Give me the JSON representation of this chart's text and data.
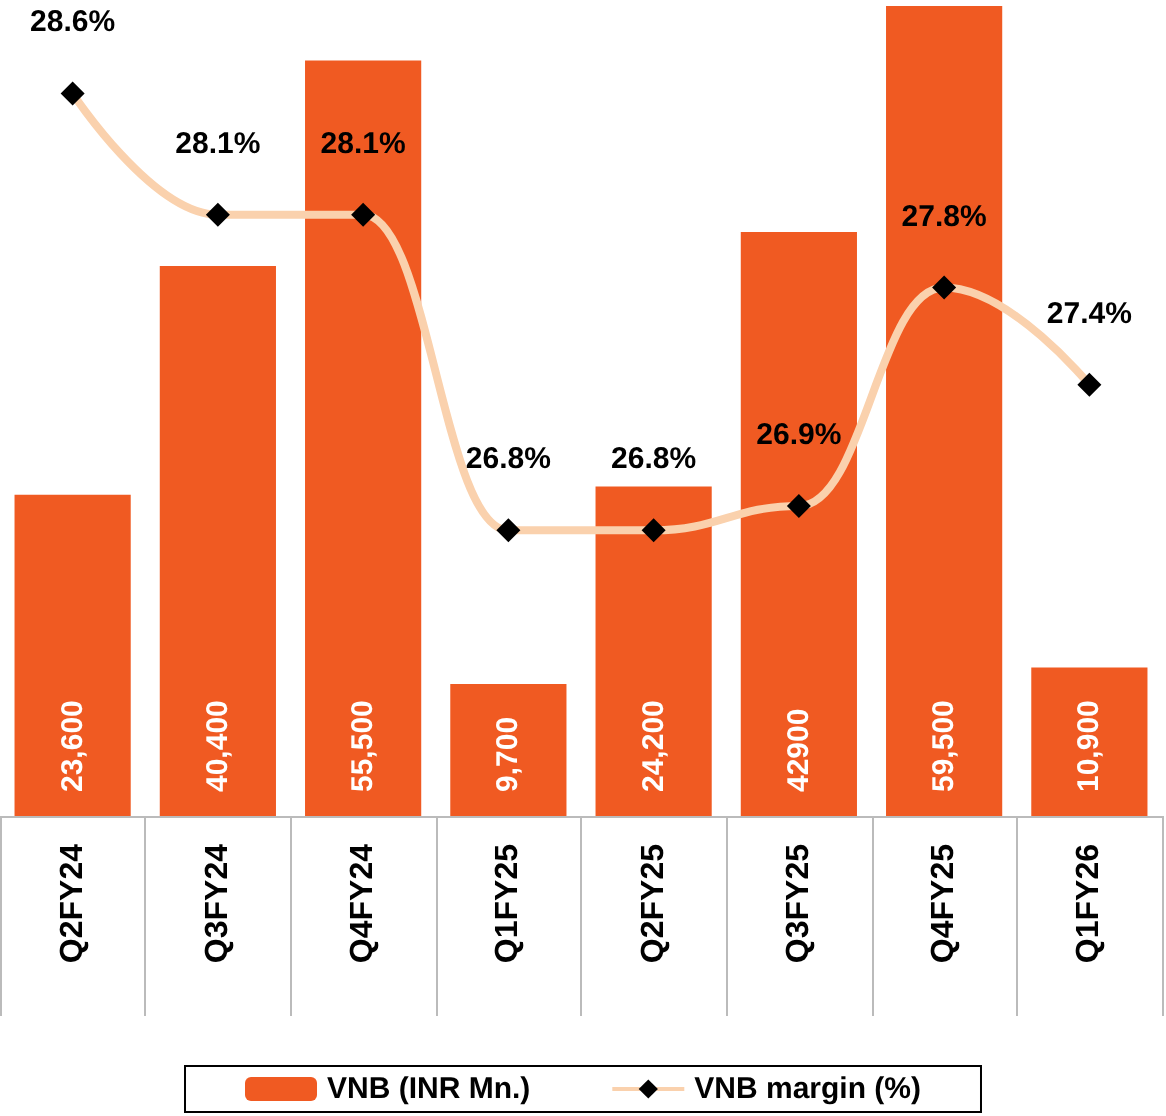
{
  "chart_data": {
    "type": "bar",
    "categories": [
      "Q2FY24",
      "Q3FY24",
      "Q4FY24",
      "Q1FY25",
      "Q2FY25",
      "Q3FY25",
      "Q4FY25",
      "Q1FY26"
    ],
    "series": [
      {
        "name": "VNB (INR Mn.)",
        "color": "#f05a22",
        "values": [
          23600,
          40400,
          55500,
          9700,
          24200,
          42900,
          59500,
          10900
        ],
        "value_labels": [
          "23,600",
          "40,400",
          "55,500",
          "9,700",
          "24,200",
          "42900",
          "59,500",
          "10,900"
        ]
      },
      {
        "name": "VNB margin (%)",
        "type": "line",
        "axis": "y2",
        "color": "#fad1ad",
        "marker": "diamond",
        "values": [
          28.6,
          28.1,
          28.1,
          26.8,
          26.8,
          26.9,
          27.8,
          27.4
        ],
        "value_labels": [
          "28.6%",
          "28.1%",
          "28.1%",
          "26.8%",
          "26.8%",
          "26.9%",
          "27.8%",
          "27.4%"
        ]
      }
    ],
    "legend": "bottom",
    "grid": false,
    "tick_labels": "x"
  }
}
